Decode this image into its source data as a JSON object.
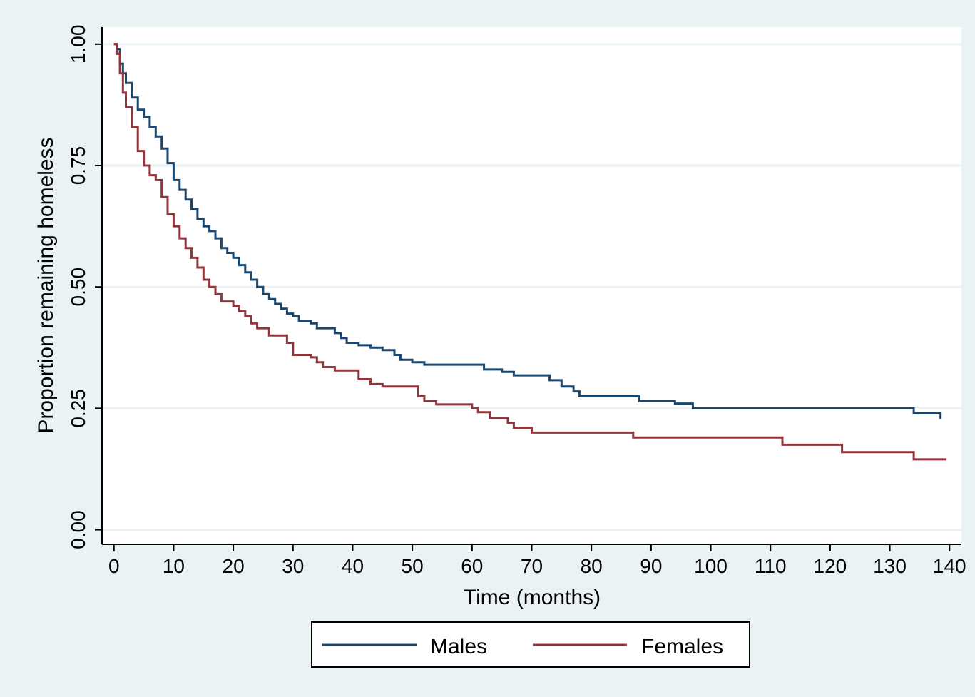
{
  "chart_data": {
    "type": "line",
    "step": true,
    "title": "",
    "xlabel": "Time (months)",
    "ylabel": "Proportion remaining homeless",
    "xlim": [
      -2,
      142
    ],
    "ylim": [
      -0.03,
      1.035
    ],
    "xticks": [
      0,
      10,
      20,
      30,
      40,
      50,
      60,
      70,
      80,
      90,
      100,
      110,
      120,
      130,
      140
    ],
    "xtick_labels": [
      "0",
      "10",
      "20",
      "30",
      "40",
      "50",
      "60",
      "70",
      "80",
      "90",
      "100",
      "110",
      "120",
      "130",
      "140"
    ],
    "yticks": [
      0,
      0.25,
      0.5,
      0.75,
      1.0
    ],
    "ytick_labels": [
      "0.00",
      "0.25",
      "0.50",
      "0.75",
      "1.00"
    ],
    "grid": "horizontal",
    "legend_position": "bottom",
    "colors": {
      "background": "#eaf2f3",
      "plot_background": "#ffffff",
      "grid": "#eaf2f3",
      "Males": "#1a476f",
      "Females": "#90353b"
    },
    "series": [
      {
        "name": "Males",
        "points": [
          [
            0,
            1.0
          ],
          [
            0.5,
            0.99
          ],
          [
            1,
            0.96
          ],
          [
            1.5,
            0.94
          ],
          [
            2,
            0.92
          ],
          [
            3,
            0.89
          ],
          [
            4,
            0.865
          ],
          [
            5,
            0.85
          ],
          [
            6,
            0.83
          ],
          [
            7,
            0.81
          ],
          [
            8,
            0.785
          ],
          [
            9,
            0.755
          ],
          [
            10,
            0.72
          ],
          [
            11,
            0.7
          ],
          [
            12,
            0.68
          ],
          [
            13,
            0.66
          ],
          [
            14,
            0.64
          ],
          [
            15,
            0.625
          ],
          [
            16,
            0.615
          ],
          [
            17,
            0.6
          ],
          [
            18,
            0.58
          ],
          [
            19,
            0.57
          ],
          [
            20,
            0.56
          ],
          [
            21,
            0.545
          ],
          [
            22,
            0.53
          ],
          [
            23,
            0.515
          ],
          [
            24,
            0.5
          ],
          [
            25,
            0.485
          ],
          [
            26,
            0.475
          ],
          [
            27,
            0.465
          ],
          [
            28,
            0.455
          ],
          [
            29,
            0.445
          ],
          [
            30,
            0.44
          ],
          [
            31,
            0.43
          ],
          [
            33,
            0.425
          ],
          [
            34,
            0.415
          ],
          [
            37,
            0.405
          ],
          [
            38,
            0.395
          ],
          [
            39,
            0.385
          ],
          [
            41,
            0.38
          ],
          [
            43,
            0.375
          ],
          [
            45,
            0.37
          ],
          [
            47,
            0.36
          ],
          [
            48,
            0.35
          ],
          [
            50,
            0.345
          ],
          [
            52,
            0.34
          ],
          [
            62,
            0.33
          ],
          [
            65,
            0.325
          ],
          [
            67,
            0.318
          ],
          [
            73,
            0.308
          ],
          [
            75,
            0.295
          ],
          [
            77,
            0.285
          ],
          [
            78,
            0.275
          ],
          [
            88,
            0.265
          ],
          [
            94,
            0.26
          ],
          [
            97,
            0.25
          ],
          [
            134,
            0.24
          ],
          [
            138.5,
            0.228
          ]
        ]
      },
      {
        "name": "Females",
        "points": [
          [
            0,
            1.0
          ],
          [
            0.5,
            0.98
          ],
          [
            1,
            0.94
          ],
          [
            1.5,
            0.9
          ],
          [
            2,
            0.87
          ],
          [
            3,
            0.83
          ],
          [
            4,
            0.78
          ],
          [
            5,
            0.75
          ],
          [
            6,
            0.73
          ],
          [
            7,
            0.72
          ],
          [
            8,
            0.685
          ],
          [
            9,
            0.65
          ],
          [
            10,
            0.625
          ],
          [
            11,
            0.6
          ],
          [
            12,
            0.58
          ],
          [
            13,
            0.56
          ],
          [
            14,
            0.54
          ],
          [
            15,
            0.515
          ],
          [
            16,
            0.5
          ],
          [
            17,
            0.485
          ],
          [
            18,
            0.47
          ],
          [
            20,
            0.46
          ],
          [
            21,
            0.45
          ],
          [
            22,
            0.44
          ],
          [
            23,
            0.425
          ],
          [
            24,
            0.415
          ],
          [
            26,
            0.4
          ],
          [
            29,
            0.385
          ],
          [
            30,
            0.36
          ],
          [
            33,
            0.355
          ],
          [
            34,
            0.345
          ],
          [
            35,
            0.335
          ],
          [
            37,
            0.328
          ],
          [
            41,
            0.31
          ],
          [
            43,
            0.3
          ],
          [
            45,
            0.295
          ],
          [
            51,
            0.275
          ],
          [
            52,
            0.265
          ],
          [
            54,
            0.258
          ],
          [
            60,
            0.25
          ],
          [
            61,
            0.242
          ],
          [
            63,
            0.23
          ],
          [
            66,
            0.22
          ],
          [
            67,
            0.21
          ],
          [
            70,
            0.2
          ],
          [
            87,
            0.19
          ],
          [
            112,
            0.175
          ],
          [
            122,
            0.16
          ],
          [
            134,
            0.145
          ],
          [
            139.5,
            0.145
          ]
        ]
      }
    ]
  }
}
